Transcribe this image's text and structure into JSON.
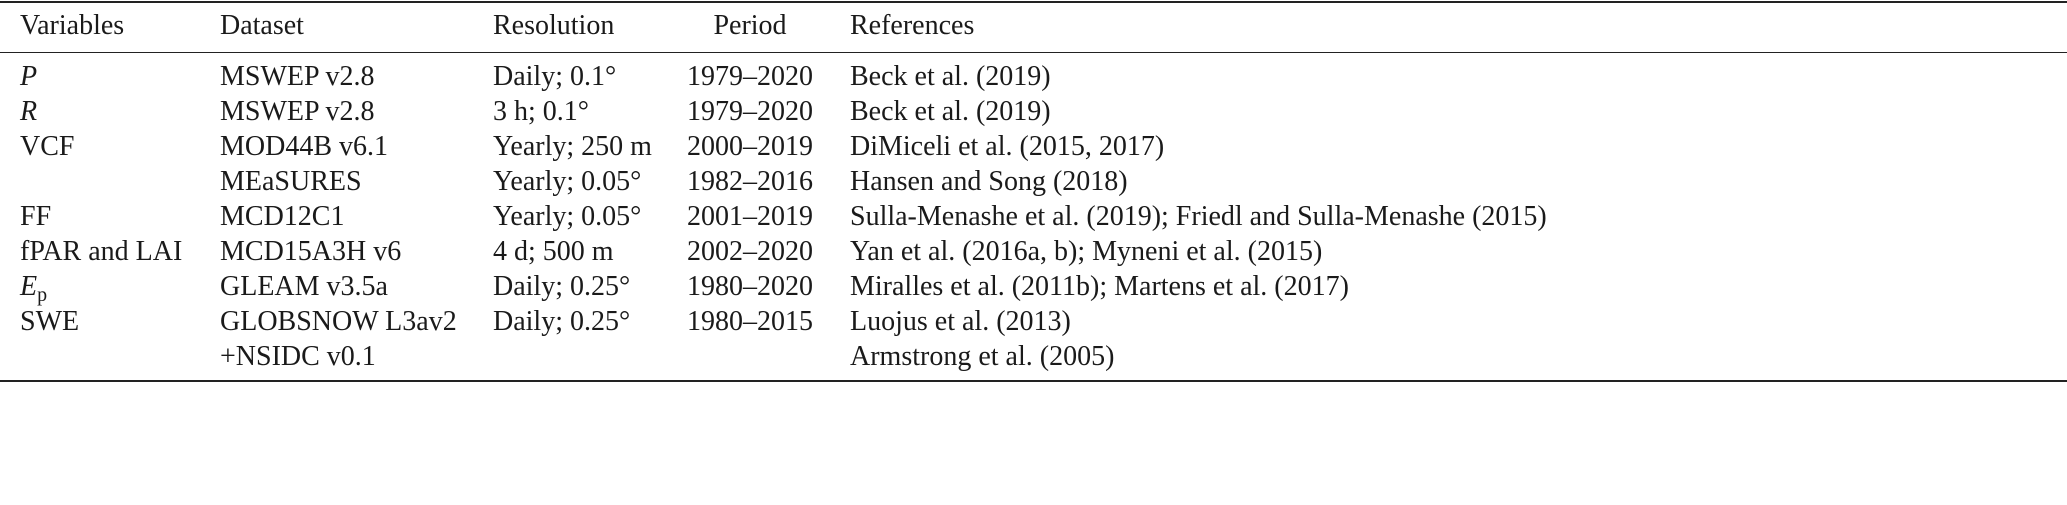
{
  "table": {
    "header": [
      "Variables",
      "Dataset",
      "Resolution",
      "Period",
      "References"
    ],
    "rows": [
      [
        {
          "text": "P",
          "italic": true
        },
        "MSWEP v2.8",
        "Daily; 0.1°",
        "1979–2020",
        "Beck et al. (2019)"
      ],
      [
        {
          "text": "R",
          "italic": true
        },
        "MSWEP v2.8",
        "3 h; 0.1°",
        "1979–2020",
        "Beck et al. (2019)"
      ],
      [
        {
          "text": "VCF",
          "italic": false
        },
        "MOD44B v6.1",
        "Yearly; 250 m",
        "2000–2019",
        "DiMiceli et al. (2015, 2017)"
      ],
      [
        null,
        "MEaSURES",
        "Yearly; 0.05°",
        "1982–2016",
        "Hansen and Song (2018)"
      ],
      [
        {
          "text": "FF",
          "italic": false
        },
        "MCD12C1",
        "Yearly; 0.05°",
        "2001–2019",
        "Sulla-Menashe et al. (2019); Friedl and Sulla-Menashe (2015)"
      ],
      [
        {
          "text": "fPAR and LAI",
          "italic": false
        },
        "MCD15A3H v6",
        "4 d; 500 m",
        "2002–2020",
        "Yan et al. (2016a, b); Myneni et al. (2015)"
      ],
      [
        {
          "text": "E",
          "subscript": "p",
          "italic": true
        },
        "GLEAM v3.5a",
        "Daily; 0.25°",
        "1980–2020",
        "Miralles et al. (2011b); Martens et al. (2017)"
      ],
      [
        {
          "text": "SWE",
          "italic": false
        },
        "GLOBSNOW L3av2",
        "Daily; 0.25°",
        "1980–2015",
        "Luojus et al. (2013)"
      ],
      [
        null,
        "+NSIDC v0.1",
        null,
        null,
        "Armstrong et al. (2005)"
      ]
    ]
  }
}
